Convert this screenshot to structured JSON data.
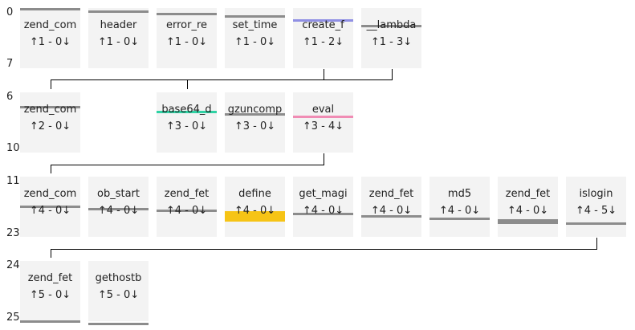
{
  "rows": [
    {
      "start_label": "0",
      "end_label": "7",
      "nodes": [
        {
          "name": "zend_com",
          "counts": "↑1 - 0↓",
          "bar": "#8c8c8c"
        },
        {
          "name": "header",
          "counts": "↑1 - 0↓",
          "bar": "#8c8c8c"
        },
        {
          "name": "error_re",
          "counts": "↑1 - 0↓",
          "bar": "#8c8c8c"
        },
        {
          "name": "set_time",
          "counts": "↑1 - 0↓",
          "bar": "#8c8c8c"
        },
        {
          "name": "create_f",
          "counts": "↑1 - 2↓",
          "bar": "#8f8fe4"
        },
        {
          "name": "__lambda",
          "counts": "↑1 - 3↓",
          "bar": "#8c8c8c"
        }
      ]
    },
    {
      "start_label": "6",
      "end_label": "10",
      "nodes": [
        {
          "name": "zend_com",
          "counts": "↑2 - 0↓",
          "bar": "#8c8c8c"
        },
        {
          "name": "base64_d",
          "counts": "↑3 - 0↓",
          "bar": "#2fd2a4"
        },
        {
          "name": "gzuncomp",
          "counts": "↑3 - 0↓",
          "bar": "#8c8c8c"
        },
        {
          "name": "eval",
          "counts": "↑3 - 4↓",
          "bar": "#f08cb4"
        }
      ]
    },
    {
      "start_label": "11",
      "end_label": "23",
      "nodes": [
        {
          "name": "zend_com",
          "counts": "↑4 - 0↓",
          "bar": "#8c8c8c"
        },
        {
          "name": "ob_start",
          "counts": "↑4 - 0↓",
          "bar": "#8c8c8c"
        },
        {
          "name": "zend_fet",
          "counts": "↑4 - 0↓",
          "bar": "#8c8c8c"
        },
        {
          "name": "define",
          "counts": "↑4 - 0↓",
          "bar": "#f6c416"
        },
        {
          "name": "get_magi",
          "counts": "↑4 - 0↓",
          "bar": "#8c8c8c"
        },
        {
          "name": "zend_fet",
          "counts": "↑4 - 0↓",
          "bar": "#8c8c8c"
        },
        {
          "name": "md5",
          "counts": "↑4 - 0↓",
          "bar": "#8c8c8c"
        },
        {
          "name": "zend_fet",
          "counts": "↑4 - 0↓",
          "bar": "#8c8c8c"
        },
        {
          "name": "islogin",
          "counts": "↑4 - 5↓",
          "bar": "#8c8c8c"
        }
      ]
    },
    {
      "start_label": "24",
      "end_label": "25",
      "nodes": [
        {
          "name": "zend_fet",
          "counts": "↑5 - 0↓",
          "bar": "#8c8c8c"
        },
        {
          "name": "gethostb",
          "counts": "↑5 - 0↓",
          "bar": "#8c8c8c"
        }
      ]
    }
  ]
}
